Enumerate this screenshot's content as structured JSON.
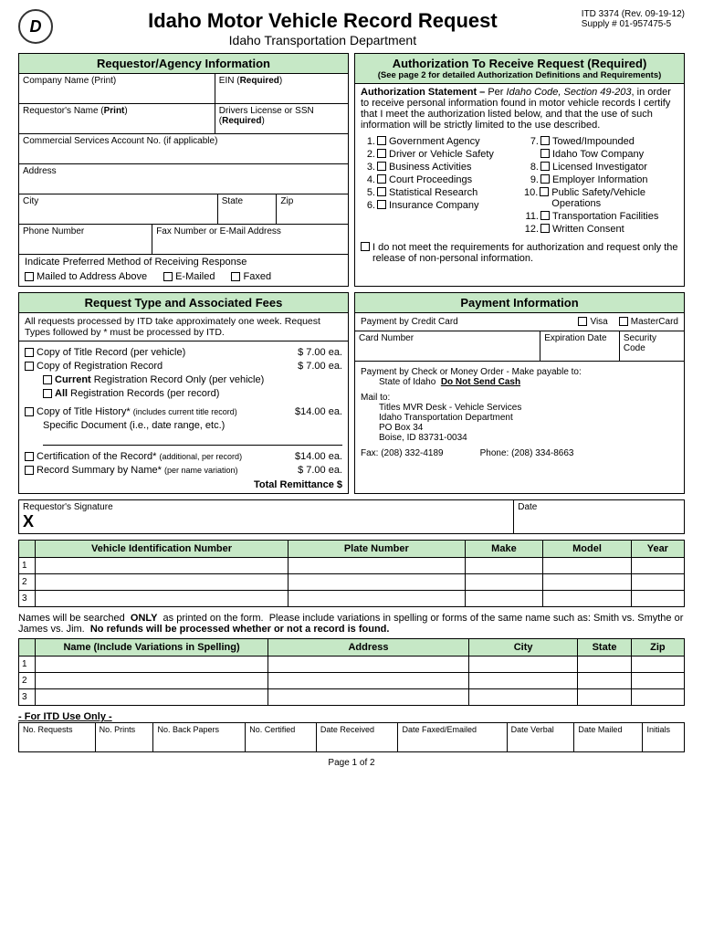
{
  "header": {
    "title": "Idaho Motor Vehicle Record Request",
    "subtitle": "Idaho Transportation Department",
    "form_no": "ITD 3374 (Rev. 09-19-12)",
    "supply_no": "Supply # 01-957475-5"
  },
  "requestor": {
    "title": "Requestor/Agency Information",
    "company_label": "Company Name (Print)",
    "ein_label": "EIN (Required)",
    "name_label": "Requestor's Name (Print)",
    "dl_label": "Drivers License or SSN (Required)",
    "csa_label": "Commercial Services Account No. (if applicable)",
    "address_label": "Address",
    "city_label": "City",
    "state_label": "State",
    "zip_label": "Zip",
    "phone_label": "Phone Number",
    "fax_label": "Fax Number or E-Mail Address",
    "pref_label": "Indicate Preferred Method of Receiving Response",
    "mailed": "Mailed to Address Above",
    "emailed": "E-Mailed",
    "faxed": "Faxed"
  },
  "auth": {
    "title": "Authorization To Receive Request (Required)",
    "subtitle": "(See page 2 for detailed Authorization Definitions and Requirements)",
    "statement_label": "Authorization Statement – ",
    "statement_text": "Per Idaho Code, Section 49-203, in order to receive personal information found in motor vehicle records I certify that I meet the authorization listed below, and that the use of such information will be strictly limited to the use described.",
    "items_left": [
      {
        "n": "1.",
        "t": "Government Agency"
      },
      {
        "n": "2.",
        "t": "Driver or Vehicle Safety"
      },
      {
        "n": "3.",
        "t": "Business Activities"
      },
      {
        "n": "4.",
        "t": "Court Proceedings"
      },
      {
        "n": "5.",
        "t": "Statistical Research"
      },
      {
        "n": "6.",
        "t": "Insurance Company"
      }
    ],
    "items_right": [
      {
        "n": "7.",
        "t": "Towed/Impounded"
      },
      {
        "n": "",
        "t": "Idaho Tow Company"
      },
      {
        "n": "8.",
        "t": "Licensed Investigator"
      },
      {
        "n": "9.",
        "t": "Employer Information"
      },
      {
        "n": "10.",
        "t": "Public Safety/Vehicle Operations"
      },
      {
        "n": "11.",
        "t": "Transportation Facilities"
      },
      {
        "n": "12.",
        "t": "Written Consent"
      }
    ],
    "disclaimer": "I do not meet the requirements for authorization and request only the release of non-personal information."
  },
  "fees": {
    "title": "Request Type and Associated Fees",
    "intro": "All requests processed by ITD take approximately one week. Request Types followed by * must be processed by ITD.",
    "title_record": "Copy of Title Record (per vehicle)",
    "title_record_fee": "$  7.00 ea.",
    "reg_record": "Copy of Registration Record",
    "reg_record_fee": "$  7.00 ea.",
    "current_reg": "Current Registration Record Only (per vehicle)",
    "all_reg": "All Registration Records (per record)",
    "title_history": "Copy of Title History* (includes current title record)",
    "title_history_fee": "$14.00 ea.",
    "specific_doc": "Specific Document (i.e., date range, etc.)",
    "cert_record": "Certification of the Record* (additional, per record)",
    "cert_record_fee": "$14.00 ea.",
    "summary": "Record Summary by Name* (per name variation)",
    "summary_fee": "$  7.00 ea.",
    "total": "Total Remittance  $"
  },
  "payment": {
    "title": "Payment Information",
    "cc_label": "Payment by Credit Card",
    "visa": "Visa",
    "mc": "MasterCard",
    "card_no": "Card Number",
    "exp": "Expiration Date",
    "sec": "Security Code",
    "check_label": "Payment by Check or Money Order - Make payable to:",
    "payee": "State of Idaho  Do Not Send Cash",
    "mail_to": "Mail to:",
    "addr1": "Titles MVR Desk - Vehicle Services",
    "addr2": "Idaho Transportation Department",
    "addr3": "PO Box 34",
    "addr4": "Boise, ID  83731-0034",
    "fax": "Fax:  (208) 332-4189",
    "phone": "Phone:  (208) 334-8663"
  },
  "sig": {
    "sig_label": "Requestor's Signature",
    "date_label": "Date",
    "x": "X"
  },
  "vehicle_table": {
    "h1": "Vehicle Identification Number",
    "h2": "Plate Number",
    "h3": "Make",
    "h4": "Model",
    "h5": "Year",
    "rows": [
      "1",
      "2",
      "3"
    ]
  },
  "names_note": "Names will be searched  ONLY  as printed on the form.  Please include variations in spelling or forms of the same name such as: Smith vs. Smythe or James vs. Jim.  No refunds will be processed whether or not a record is found.",
  "name_table": {
    "h1": "Name (Include Variations in Spelling)",
    "h2": "Address",
    "h3": "City",
    "h4": "State",
    "h5": "Zip",
    "rows": [
      "1",
      "2",
      "3"
    ]
  },
  "itd": {
    "title": "- For ITD Use Only -",
    "c1": "No. Requests",
    "c2": "No. Prints",
    "c3": "No. Back Papers",
    "c4": "No. Certified",
    "c5": "Date Received",
    "c6": "Date Faxed/Emailed",
    "c7": "Date Verbal",
    "c8": "Date Mailed",
    "c9": "Initials"
  },
  "page": "Page 1 of 2"
}
